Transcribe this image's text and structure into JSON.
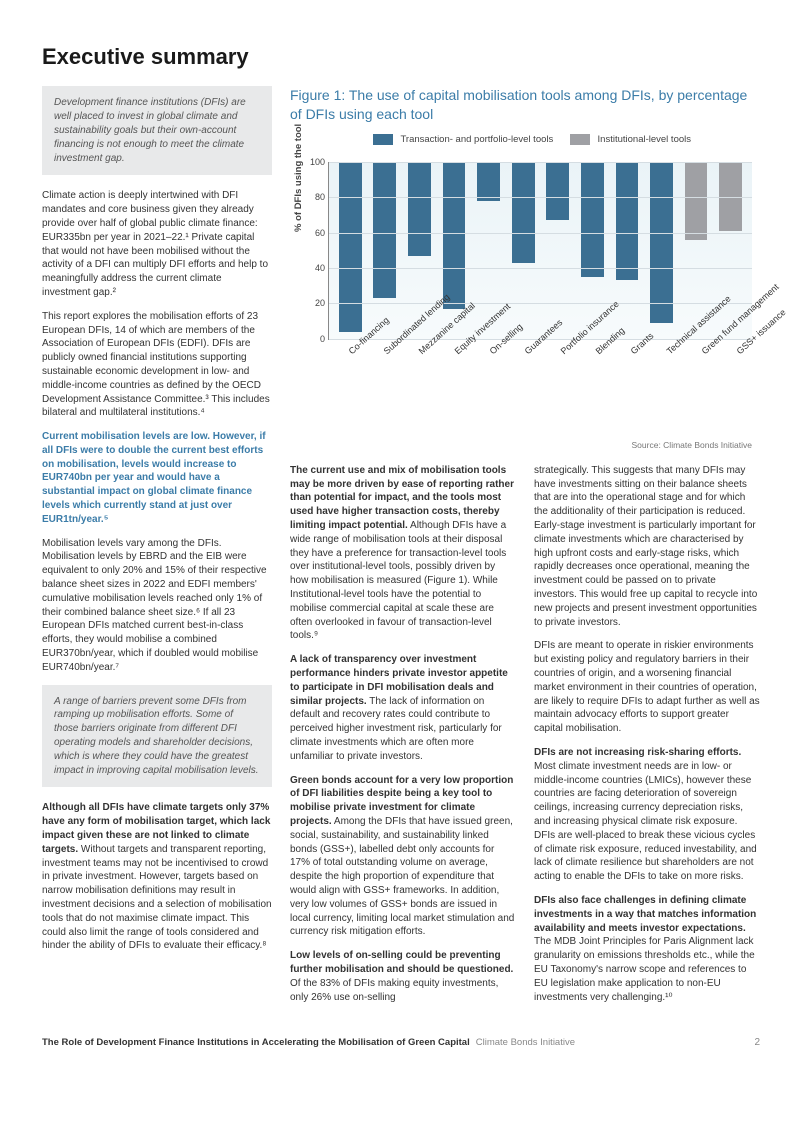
{
  "heading": "Executive summary",
  "left": {
    "callout1": "Development finance institutions (DFIs) are well placed to invest in global climate and sustainability goals but their own-account financing is not enough to meet the climate investment gap.",
    "p1": "Climate action is deeply intertwined with DFI mandates and core business given they already provide over half of global public climate finance: EUR335bn per year in 2021–22.¹ Private capital that would not have been mobilised without the activity of a DFI can multiply DFI efforts and help to meaningfully address the current climate investment gap.²",
    "p2": "This report explores the mobilisation efforts of 23 European DFIs, 14 of which are members of the Association of European DFIs (EDFI). DFIs are publicly owned financial institutions supporting sustainable economic development in low- and middle-income countries as defined by the OECD Development Assistance Committee.³ This includes bilateral and multilateral institutions.⁴",
    "emph": "Current mobilisation levels are low. However, if all DFIs were to double the current best efforts on mobilisation, levels would increase to EUR740bn per year and would have a substantial impact on global climate finance levels which currently stand at just over EUR1tn/year.⁵",
    "p3": "Mobilisation levels vary among the DFIs. Mobilisation levels by EBRD and the EIB were equivalent to only 20% and 15% of their respective balance sheet sizes in 2022 and EDFI members' cumulative mobilisation levels reached only 1% of their combined balance sheet size.⁶ If all 23 European DFIs matched current best-in-class efforts, they would mobilise a combined EUR370bn/year, which if doubled would mobilise EUR740bn/year.⁷",
    "callout2": "A range of barriers prevent some DFIs from ramping up mobilisation efforts. Some of those barriers originate from different DFI operating models and shareholder decisions, which is where they could have the greatest impact in improving capital mobilisation levels.",
    "p4_bold": "Although all DFIs have climate targets only 37% have any form of mobilisation target, which lack impact given these are not linked to climate targets.",
    "p4_rest": " Without targets and transparent reporting, investment teams may not be incentivised to crowd in private investment. However, targets based on narrow mobilisation definitions may result in investment decisions and a selection of mobilisation tools that do not maximise climate impact. This could also limit the range of tools considered and hinder the ability of DFIs to evaluate their efficacy.⁸"
  },
  "figure": {
    "title": "Figure 1: The use of capital mobilisation tools among DFIs, by percentage of DFIs using each tool",
    "legend1": "Transaction- and portfolio-level tools",
    "legend2": "Institutional-level tools",
    "color1": "#3b6f92",
    "color2": "#9fa0a4",
    "bg_top": "#eaf3f7",
    "grid": "#d5dde2",
    "border": "#888888",
    "ylabel": "% of DFIs using the tool",
    "ylim": [
      0,
      100
    ],
    "yticks": [
      0,
      20,
      40,
      60,
      80,
      100
    ],
    "categories": [
      "Co-financing",
      "Subordinated lending",
      "Mezzanine capital",
      "Equity investment",
      "On-selling",
      "Guarantees",
      "Portfolio insurance",
      "Blending",
      "Grants",
      "Technical assistance",
      "Green fund management",
      "GSS+ issuance"
    ],
    "values": [
      96,
      77,
      53,
      83,
      22,
      57,
      33,
      65,
      67,
      91,
      44,
      39
    ],
    "series": [
      1,
      1,
      1,
      1,
      1,
      1,
      1,
      1,
      1,
      1,
      2,
      2
    ],
    "source": "Source: Climate Bonds Initiative"
  },
  "mid": {
    "p1_bold": "The current use and mix of mobilisation tools may be more driven by ease of reporting rather than potential for impact, and the tools most used have higher transaction costs, thereby limiting impact potential.",
    "p1_rest": " Although DFIs have a wide range of mobilisation tools at their disposal they have a preference for transaction-level tools over institutional-level tools, possibly driven by how mobilisation is measured (Figure 1). While Institutional-level tools have the potential to mobilise commercial capital at scale these are often overlooked in favour of transaction-level tools.⁹",
    "p2_bold": "A lack of transparency over investment performance hinders private investor appetite to participate in DFI mobilisation deals and similar projects.",
    "p2_rest": " The lack of information on default and recovery rates could contribute to perceived higher investment risk, particularly for climate investments which are often more unfamiliar to private investors.",
    "p3_bold": "Green bonds account for a very low proportion of DFI liabilities despite being a key tool to mobilise private investment for climate projects.",
    "p3_rest": " Among the DFIs that have issued green, social, sustainability, and sustainability linked bonds (GSS+), labelled debt only accounts for 17% of total outstanding volume on average, despite the high proportion of expenditure that would align with GSS+ frameworks. In addition, very low volumes of GSS+ bonds are issued in local currency, limiting local market stimulation and currency risk mitigation efforts.",
    "p4_bold": "Low levels of on-selling could be preventing further mobilisation and should be questioned.",
    "p4_rest": " Of the 83% of DFIs making equity investments, only 26% use on-selling"
  },
  "right": {
    "p1": "strategically. This suggests that many DFIs may have investments sitting on their balance sheets that are into the operational stage and for which the additionality of their participation is reduced. Early-stage investment is particularly important for climate investments which are characterised by high upfront costs and early-stage risks, which rapidly decreases once operational, meaning the investment could be passed on to private investors. This would free up capital to recycle into new projects and present investment opportunities to private investors.",
    "p2": "DFIs are meant to operate in riskier environments but existing policy and regulatory barriers in their countries of origin, and a worsening financial market environment in their countries of operation, are likely to require DFIs to adapt further as well as maintain advocacy efforts to support greater capital mobilisation.",
    "p3_bold": "DFIs are not increasing risk-sharing efforts.",
    "p3_rest": " Most climate investment needs are in low- or middle-income countries (LMICs), however these countries are facing deterioration of sovereign ceilings, increasing currency depreciation risks, and increasing physical climate risk exposure. DFIs are well-placed to break these vicious cycles of climate risk exposure, reduced investability, and lack of climate resilience but shareholders are not acting to enable the DFIs to take on more risks.",
    "p4_bold": "DFIs also face challenges in defining climate investments in a way that matches information availability and meets investor expectations.",
    "p4_rest": " The MDB Joint Principles for Paris Alignment lack granularity on emissions thresholds etc., while the EU Taxonomy's narrow scope and references to EU legislation make application to non-EU investments very challenging.¹⁰"
  },
  "footer": {
    "bold": "The Role of Development Finance Institutions in Accelerating the Mobilisation of Green Capital",
    "light": "Climate Bonds Initiative",
    "page": "2"
  }
}
